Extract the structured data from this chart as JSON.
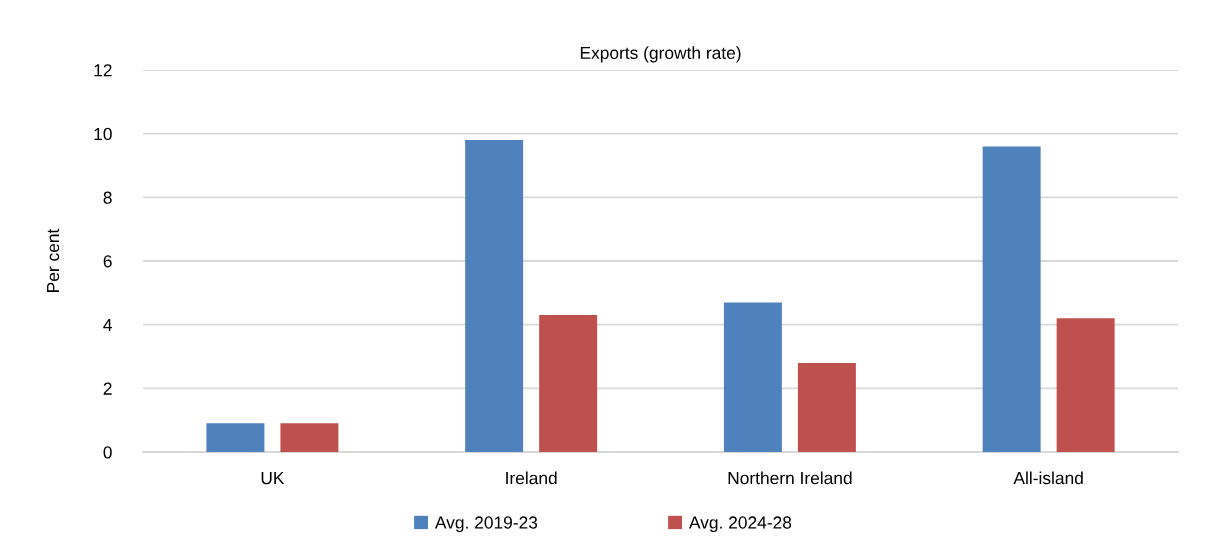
{
  "chart_data": {
    "type": "bar",
    "title": "Exports (growth rate)",
    "ylabel": "Per cent",
    "categories": [
      "UK",
      "Ireland",
      "Northern Ireland",
      "All-island"
    ],
    "series": [
      {
        "name": "Avg. 2019-23",
        "color": "#4f81bd",
        "values": [
          0.9,
          9.8,
          4.7,
          9.6
        ]
      },
      {
        "name": "Avg. 2024-28",
        "color": "#c0504d",
        "values": [
          0.9,
          4.3,
          2.8,
          4.2
        ]
      }
    ],
    "ylim": [
      0,
      12
    ],
    "yticks": [
      0,
      2,
      4,
      6,
      8,
      10,
      12
    ],
    "grid": "y",
    "legend": "bottom"
  }
}
